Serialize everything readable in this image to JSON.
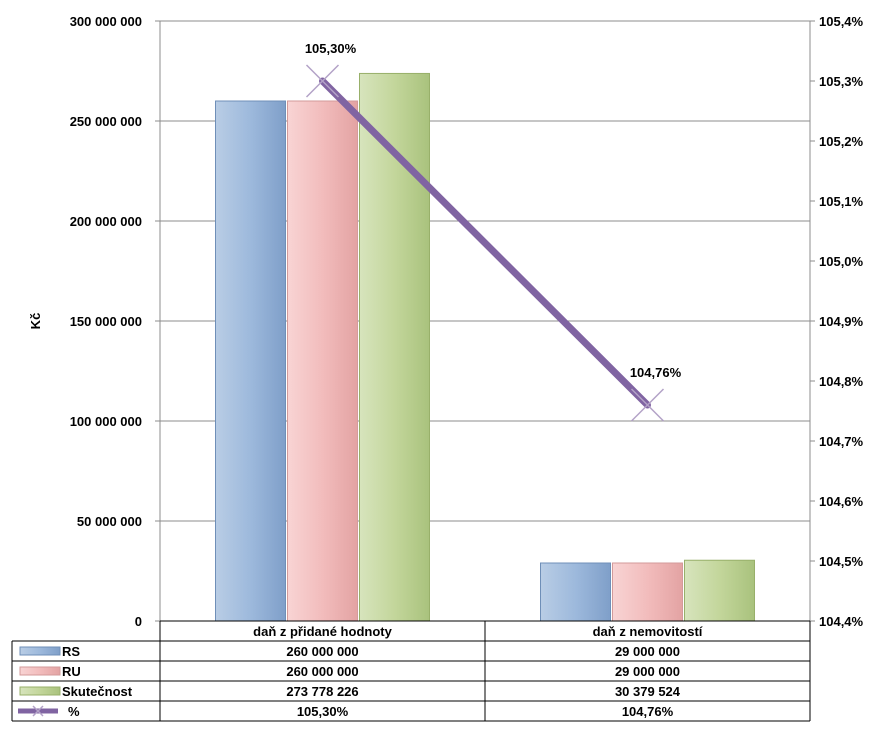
{
  "chart_data": {
    "type": "bar",
    "ylabel": "Kč",
    "categories": [
      "daň z přidané hodnoty",
      "daň z nemovitostí"
    ],
    "ylim": [
      0,
      300000000
    ],
    "y_ticks": [
      "0",
      "50 000 000",
      "100 000 000",
      "150 000 000",
      "200 000 000",
      "250 000 000",
      "300 000 000"
    ],
    "y2lim": [
      104.4,
      105.4
    ],
    "y2_ticks": [
      "104,4%",
      "104,5%",
      "104,6%",
      "104,7%",
      "104,8%",
      "104,9%",
      "105,0%",
      "105,1%",
      "105,2%",
      "105,3%",
      "105,4%"
    ],
    "series": [
      {
        "name": "RS",
        "values": [
          260000000,
          29000000
        ],
        "labels": [
          "260 000 000",
          "29 000 000"
        ],
        "color": "#95B3D7"
      },
      {
        "name": "RU",
        "values": [
          260000000,
          29000000
        ],
        "labels": [
          "260 000 000",
          "29 000 000"
        ],
        "color": "#F2BCBC"
      },
      {
        "name": "Skutečnost",
        "values": [
          273778226,
          30379524
        ],
        "labels": [
          "273 778 226",
          "30 379 524"
        ],
        "color": "#C3D69B"
      }
    ],
    "line_series": {
      "name": "%",
      "axis": "secondary",
      "values": [
        105.3,
        104.76
      ],
      "labels": [
        "105,30%",
        "104,76%"
      ],
      "color": "#8064A2"
    },
    "grid": true,
    "legend": "data-table"
  }
}
